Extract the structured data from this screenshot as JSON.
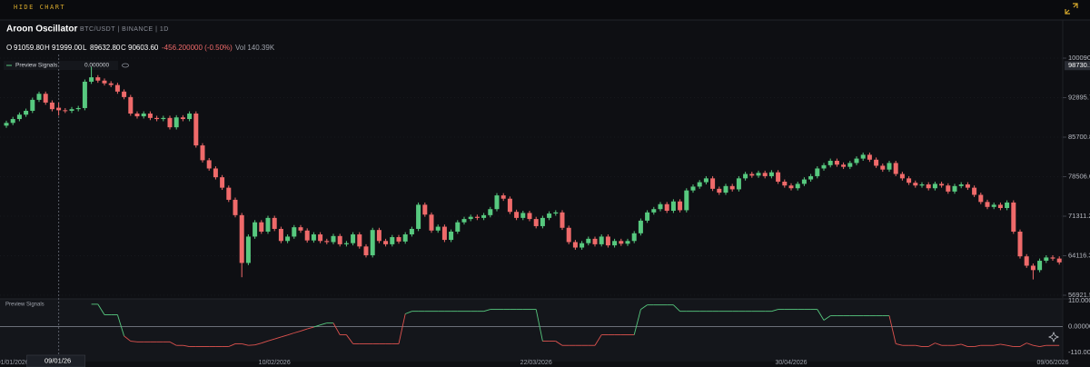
{
  "header": {
    "button": "HIDE CHART"
  },
  "chart_data": {
    "type": "candlestick",
    "title": "Aroon Oscillator",
    "subtitle": "BTC/USDT | BINANCE | 1D",
    "ohlc": [
      {
        "label": "O",
        "value": "91059.80"
      },
      {
        "label": "H",
        "value": "91999.00"
      },
      {
        "label": "L",
        "value": "89632.80"
      },
      {
        "label": "C",
        "value": "90603.60"
      }
    ],
    "change": "-456.200000 (-0.50%)",
    "volume": "Vol 140.39K",
    "up_color": "#57c97f",
    "down_color": "#ef6a6a",
    "open": [
      87800,
      88300,
      89000,
      89800,
      90500,
      92500,
      93600,
      92000,
      91059.8,
      90603.6,
      90500,
      90800,
      91000,
      95800,
      96600,
      96000,
      95500,
      95200,
      94000,
      93000,
      90000,
      89500,
      90000,
      89200,
      89000,
      89200,
      87500,
      89300,
      89000,
      90000,
      84200,
      81500,
      80000,
      78400,
      76500,
      74300,
      71500,
      62800,
      67600,
      70200,
      68500,
      71000,
      69000,
      66800,
      67600,
      69300,
      68700,
      66900,
      68000,
      66800,
      66600,
      67700,
      66200,
      66400,
      68000,
      65800,
      64200,
      68800,
      66800,
      66200,
      67500,
      66700,
      68000,
      69000,
      73400,
      71600,
      68700,
      69400,
      67000,
      68500,
      70200,
      70800,
      71200,
      71000,
      71500,
      72600,
      75100,
      74500,
      72100,
      71000,
      71900,
      70800,
      69500,
      71000,
      71800,
      72000,
      69200,
      66600,
      65600,
      66400,
      67200,
      66200,
      67600,
      66000,
      66800,
      66300,
      66800,
      68200,
      70500,
      72000,
      72600,
      73500,
      72300,
      74000,
      72400,
      76000,
      76700,
      77500,
      78200,
      76300,
      75600,
      76800,
      76200,
      78200,
      79000,
      78700,
      79200,
      78600,
      79300,
      77600,
      76900,
      76400,
      77200,
      78000,
      78600,
      80000,
      80600,
      81400,
      80700,
      80300,
      81000,
      81800,
      82500,
      81600,
      80500,
      79800,
      81000,
      79000,
      78200,
      77400,
      76900,
      77100,
      76400,
      77200,
      76900,
      75800,
      76800,
      77100,
      76500,
      75200,
      73900,
      73000,
      73400,
      72800,
      73800,
      68500,
      64000,
      62300,
      61500,
      63200,
      63800,
      63600
    ],
    "high": [
      88700,
      89400,
      90200,
      90900,
      92900,
      94000,
      94000,
      92400,
      91999,
      91000,
      91200,
      91400,
      96200,
      98500,
      97000,
      96400,
      95900,
      95600,
      94400,
      93400,
      90400,
      90400,
      90400,
      89600,
      89600,
      89600,
      89700,
      89700,
      90400,
      90400,
      84600,
      81900,
      80400,
      78800,
      76900,
      74700,
      71900,
      68000,
      70600,
      70600,
      71400,
      71400,
      69400,
      68000,
      69700,
      69700,
      69100,
      68400,
      68400,
      67200,
      68100,
      68100,
      66800,
      68400,
      68400,
      66200,
      69200,
      69200,
      67200,
      67900,
      67900,
      68400,
      69400,
      73800,
      73800,
      72000,
      69800,
      69800,
      68900,
      70600,
      71200,
      71600,
      71600,
      71900,
      73000,
      75500,
      75500,
      74900,
      72500,
      72300,
      72300,
      71200,
      71400,
      72200,
      72400,
      72400,
      69600,
      67000,
      66800,
      67600,
      67600,
      68000,
      68000,
      67200,
      67200,
      67200,
      68600,
      70900,
      72400,
      73000,
      73900,
      73900,
      74400,
      74400,
      76400,
      77100,
      77900,
      78600,
      78600,
      76700,
      77200,
      77200,
      78600,
      79400,
      79400,
      79600,
      79600,
      79700,
      79700,
      78000,
      77300,
      77600,
      78400,
      79000,
      80400,
      81000,
      81800,
      81800,
      81100,
      81400,
      82200,
      82900,
      82900,
      82000,
      80900,
      81400,
      81400,
      79400,
      78600,
      77800,
      77500,
      77500,
      77600,
      77600,
      77300,
      77200,
      77500,
      77500,
      76900,
      75600,
      74300,
      73800,
      73800,
      74200,
      74200,
      68900,
      64400,
      62700,
      63600,
      64200,
      64200,
      64000
    ],
    "low": [
      87400,
      87900,
      88600,
      89400,
      90100,
      92100,
      91600,
      90400,
      89632.8,
      90100,
      90100,
      90400,
      90600,
      95400,
      95600,
      95100,
      94800,
      93600,
      92600,
      89600,
      89100,
      89100,
      88800,
      88600,
      88600,
      87100,
      87100,
      88600,
      88600,
      83800,
      81100,
      79600,
      78000,
      76100,
      73900,
      71100,
      60200,
      62400,
      67200,
      68100,
      68100,
      68600,
      66400,
      66400,
      67200,
      68300,
      66500,
      66500,
      66400,
      66200,
      66200,
      65800,
      65800,
      66000,
      65400,
      63800,
      63800,
      66400,
      65800,
      65800,
      66300,
      66300,
      67600,
      68600,
      71200,
      68300,
      68300,
      66600,
      66600,
      68100,
      69800,
      70400,
      70600,
      70600,
      71100,
      72200,
      74100,
      71700,
      70600,
      70600,
      70400,
      69100,
      69100,
      70600,
      71400,
      68800,
      66200,
      65200,
      65200,
      66000,
      65800,
      65800,
      65600,
      65600,
      65900,
      65900,
      66400,
      67800,
      70100,
      71600,
      72200,
      71900,
      71900,
      72000,
      72000,
      75600,
      76300,
      77100,
      75900,
      75200,
      75200,
      75800,
      75800,
      77800,
      78300,
      78300,
      78200,
      78200,
      77200,
      76500,
      76000,
      76000,
      76800,
      77600,
      78200,
      79600,
      80200,
      80300,
      79900,
      79900,
      80600,
      81400,
      81200,
      80100,
      79400,
      79400,
      78600,
      77800,
      77000,
      76500,
      76500,
      76000,
      76000,
      76500,
      75400,
      75400,
      76400,
      76100,
      74800,
      73500,
      72600,
      72600,
      72400,
      72400,
      68100,
      63600,
      61900,
      59800,
      61100,
      62800,
      63200,
      62500
    ],
    "close": [
      88300,
      89000,
      89800,
      90500,
      92500,
      93600,
      92000,
      90800,
      90603.6,
      90500,
      90800,
      91000,
      95800,
      96600,
      96000,
      95500,
      95200,
      94000,
      93000,
      90000,
      89500,
      90000,
      89200,
      89000,
      89200,
      87500,
      89300,
      89000,
      90000,
      84200,
      81500,
      80000,
      78400,
      76500,
      74300,
      71500,
      62800,
      67600,
      70200,
      68500,
      71000,
      69000,
      66800,
      67600,
      69300,
      68700,
      66900,
      68000,
      66800,
      66600,
      67700,
      66200,
      66400,
      68000,
      65800,
      64200,
      68800,
      66800,
      66200,
      67500,
      66700,
      68000,
      69000,
      73400,
      71600,
      68700,
      69400,
      67000,
      68500,
      70200,
      70800,
      71200,
      71000,
      71500,
      72600,
      75100,
      74500,
      72100,
      71000,
      71900,
      70800,
      69500,
      71000,
      71800,
      72000,
      69200,
      66600,
      65600,
      66400,
      67200,
      66200,
      67600,
      66000,
      66800,
      66300,
      66800,
      68200,
      70500,
      72000,
      72600,
      73500,
      72300,
      74000,
      72400,
      76000,
      76700,
      77500,
      78200,
      76300,
      75600,
      76800,
      76200,
      78200,
      79000,
      78700,
      79200,
      78600,
      79300,
      77600,
      76900,
      76400,
      77200,
      78000,
      78600,
      80000,
      80600,
      81400,
      80700,
      80300,
      81000,
      81800,
      82500,
      81600,
      80500,
      79800,
      81000,
      79000,
      78200,
      77400,
      76900,
      77100,
      76400,
      77200,
      76900,
      75800,
      76800,
      77100,
      76500,
      75200,
      73900,
      73000,
      73400,
      72800,
      73800,
      68500,
      64000,
      62300,
      61500,
      63200,
      63800,
      63600,
      62900
    ],
    "ylim": [
      56921.55,
      100090.5
    ],
    "yticks": [
      100090.5,
      92895.72,
      85700.88,
      78506.05,
      71311.22,
      64116.38,
      56921.55
    ],
    "grid": true,
    "price_marker": 98730.1,
    "xticks": [
      {
        "value": 1,
        "label": "01/01/2026"
      },
      {
        "value": 41,
        "label": "10/02/2026"
      },
      {
        "value": 81,
        "label": "22/03/2026"
      },
      {
        "value": 120,
        "label": "30/04/2026"
      },
      {
        "value": 160,
        "label": "09/06/2026"
      }
    ],
    "crosshair": {
      "value": 8,
      "label": "09/01/26"
    },
    "indicator": {
      "name": "Preview Signals",
      "value_label": "0.000000",
      "up_color": "#57c97f",
      "down_color": "#e0534f",
      "ylim": [
        -110,
        110
      ],
      "yticks": [
        {
          "value": 110,
          "label": "110.0000"
        },
        {
          "value": 0,
          "label": "0.000000"
        },
        {
          "value": -110,
          "label": "-110.0000"
        }
      ],
      "values": [
        null,
        null,
        null,
        null,
        null,
        null,
        null,
        null,
        null,
        null,
        null,
        null,
        null,
        95,
        95,
        50,
        50,
        50,
        -40,
        -62,
        -65,
        -65,
        -65,
        -65,
        -65,
        -65,
        -80,
        -80,
        -85,
        -85,
        -85,
        -85,
        -85,
        -85,
        -85,
        -73,
        -73,
        -80,
        -78,
        -70,
        -61,
        -53,
        -44,
        -36,
        -27,
        -19,
        -10,
        -2,
        7,
        15,
        15,
        -35,
        -35,
        -73,
        -73,
        -73,
        -73,
        -73,
        -73,
        -73,
        -73,
        54,
        65,
        65,
        65,
        65,
        65,
        65,
        65,
        65,
        65,
        65,
        65,
        65,
        73,
        73,
        73,
        73,
        73,
        73,
        73,
        73,
        -62,
        -62,
        -62,
        -80,
        -80,
        -80,
        -80,
        -80,
        -80,
        -35,
        -35,
        -35,
        -35,
        -35,
        -35,
        73,
        92,
        92,
        92,
        92,
        92,
        65,
        65,
        65,
        65,
        65,
        65,
        65,
        65,
        65,
        65,
        65,
        65,
        65,
        65,
        65,
        73,
        73,
        73,
        73,
        73,
        73,
        73,
        27,
        46,
        46,
        46,
        46,
        46,
        46,
        46,
        46,
        46,
        46,
        -73,
        -80,
        -80,
        -80,
        -85,
        -85,
        -70,
        -80,
        -80,
        -80,
        -75,
        -85,
        -85,
        -80,
        -80,
        -80,
        -75,
        -80,
        -85,
        -85,
        -70,
        -80,
        -85,
        -80,
        -80,
        -80
      ]
    }
  }
}
